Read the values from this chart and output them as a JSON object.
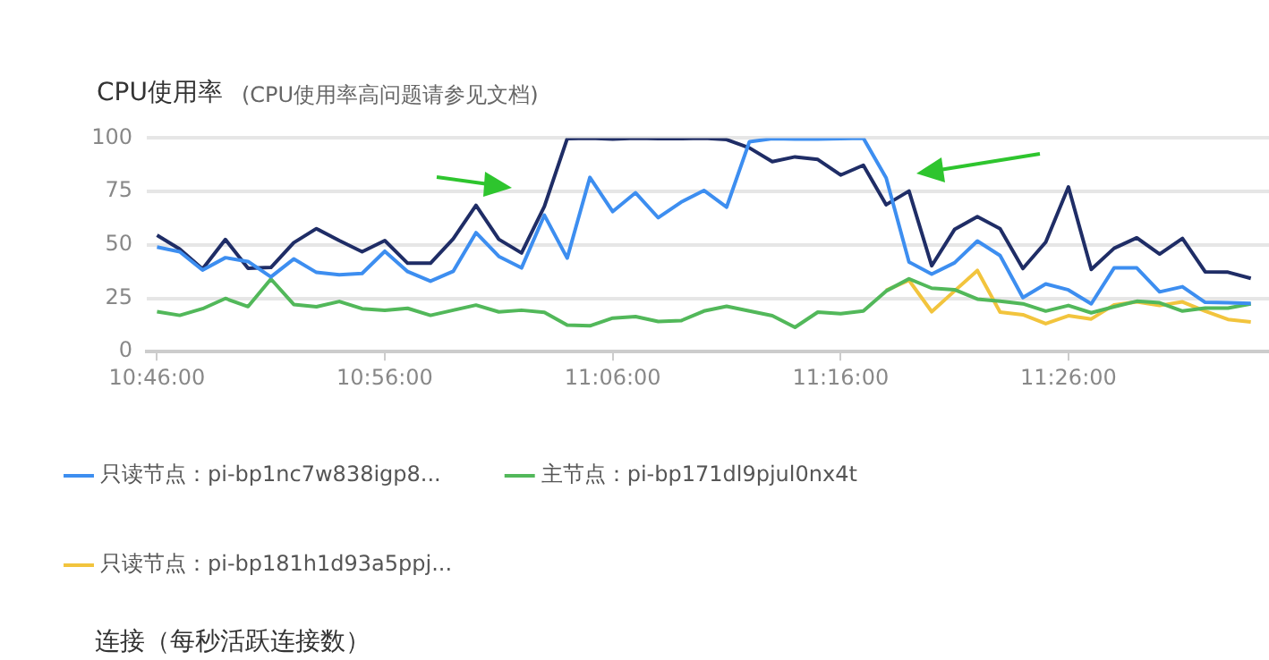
{
  "chart_data": {
    "type": "line",
    "title": "CPU使用率",
    "subtitle": "(CPU使用率高问题请参见文档)",
    "annotations": [
      "连接（每秒活跃连接数）"
    ],
    "x": [
      10.7667,
      10.7833,
      10.8,
      10.8167,
      10.8333,
      10.85,
      10.8667,
      10.8833,
      10.9,
      10.9167,
      10.9333,
      10.95,
      10.9667,
      10.9833,
      11.0,
      11.0167,
      11.0333,
      11.05,
      11.0667,
      11.0833,
      11.1,
      11.1167,
      11.1333,
      11.15,
      11.1667,
      11.1833,
      11.2,
      11.2167,
      11.2333,
      11.25,
      11.2667,
      11.2833,
      11.3,
      11.3167,
      11.3333,
      11.35,
      11.3667,
      11.3833,
      11.4,
      11.4167,
      11.4333,
      11.45,
      11.4667,
      11.4833,
      11.5,
      11.5167,
      11.5333,
      11.55,
      11.5667
    ],
    "series": [
      {
        "name": "只读节点：pi-bp1nc7w838igp8...",
        "color": "#3d8ef0",
        "values": [
          49,
          46.8,
          38.2,
          44,
          42.2,
          35,
          43.4,
          37.1,
          36,
          36.6,
          47,
          37.5,
          33,
          37.6,
          55.7,
          44.6,
          39.2,
          63.9,
          43.8,
          81.6,
          65.6,
          74.4,
          62.7,
          70,
          75.5,
          67.7,
          98.3,
          99.7,
          99.5,
          99.5,
          99.8,
          100,
          81.3,
          42,
          36.3,
          41.6,
          51.8,
          45,
          25.3,
          31.7,
          28.9,
          22.4,
          39.2,
          39.2,
          28,
          30.4,
          23.1,
          22.9,
          22.6
        ]
      },
      {
        "name": "主节点：pi-bp171dl9pjul0nx4t",
        "color": "#52b85a",
        "values": [
          18.7,
          17,
          20.1,
          24.9,
          21.1,
          34,
          22.1,
          21,
          23.5,
          20.1,
          19.3,
          20.3,
          17,
          19.4,
          21.8,
          18.6,
          19.4,
          18.4,
          12.4,
          12.1,
          15.7,
          16.4,
          14.1,
          14.5,
          19,
          21.2,
          19,
          16.8,
          11.4,
          18.5,
          17.8,
          19,
          28.4,
          34.1,
          29.7,
          29,
          24.6,
          23.6,
          22.4,
          19,
          21.6,
          18.2,
          21,
          23.6,
          22.9,
          19,
          20.4,
          20.4,
          22.4
        ]
      },
      {
        "name": "只读节点：pi-bp181h1d93a5ppj...",
        "color": "#f2c43d",
        "values": [
          null,
          null,
          null,
          null,
          null,
          null,
          null,
          null,
          null,
          null,
          null,
          null,
          null,
          null,
          null,
          null,
          null,
          null,
          null,
          null,
          null,
          null,
          null,
          null,
          null,
          null,
          null,
          null,
          null,
          null,
          null,
          null,
          28.7,
          33.4,
          18.7,
          28.4,
          38,
          18.5,
          17.3,
          13.1,
          16.8,
          15.3,
          21.9,
          23.3,
          21.6,
          23.3,
          19,
          15.1,
          13.9
        ]
      },
      {
        "color": "#1f2d66",
        "values": [
          54.5,
          48,
          38.7,
          52.5,
          39,
          39.4,
          51,
          57.6,
          52,
          46.8,
          52,
          41.4,
          41.4,
          52.8,
          68.5,
          52.6,
          46.2,
          68,
          99.7,
          100,
          99.5,
          100,
          99.8,
          99.7,
          100,
          99.3,
          95.4,
          89,
          91.2,
          90,
          82.7,
          87.3,
          68.8,
          75.2,
          40.2,
          57.2,
          63.2,
          57.6,
          38.9,
          51.3,
          77.1,
          38.5,
          48.4,
          53.3,
          45.7,
          53,
          37.4,
          37.2,
          34.3
        ]
      }
    ],
    "xlim": [
      10.7592,
      11.58
    ],
    "xticks": [
      {
        "value": 10.7667,
        "label": "10:46:00"
      },
      {
        "value": 10.9333,
        "label": "10:56:00"
      },
      {
        "value": 11.1,
        "label": "11:06:00"
      },
      {
        "value": 11.2667,
        "label": "11:16:00"
      },
      {
        "value": 11.4333,
        "label": "11:26:00"
      }
    ],
    "ylim": [
      0,
      100
    ],
    "yticks": [
      0,
      25,
      50,
      75,
      100
    ],
    "grid": "y",
    "legend": "bottom",
    "marker": "none",
    "line_style": "solid"
  }
}
